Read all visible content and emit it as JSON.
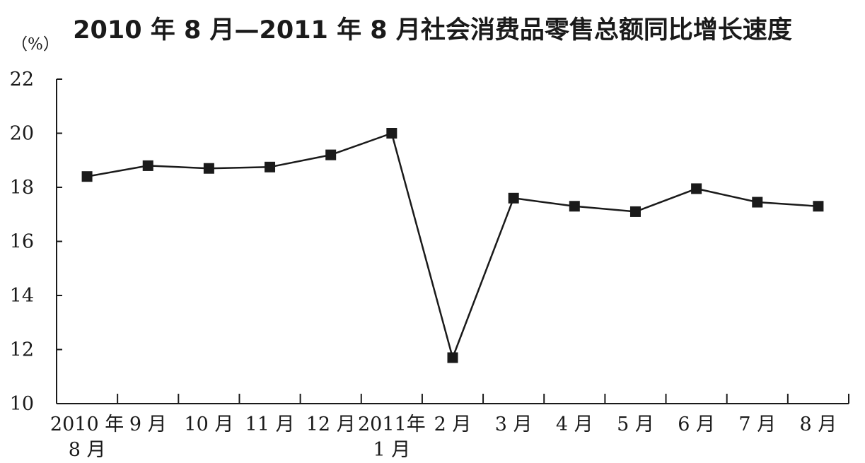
{
  "chart_data": {
    "type": "line",
    "title": "2010 年 8 月—2011 年 8 月社会消费品零售总额同比增长速度",
    "ylabel": "（%）",
    "xlabel": "",
    "ylim": [
      10,
      22
    ],
    "yticks": [
      10,
      12,
      14,
      16,
      18,
      20,
      22
    ],
    "grid": false,
    "categories": [
      [
        "2010 年",
        "8 月"
      ],
      [
        "9 月"
      ],
      [
        "10 月"
      ],
      [
        "11 月"
      ],
      [
        "12 月"
      ],
      [
        "2011年",
        "1 月"
      ],
      [
        "2 月"
      ],
      [
        "3 月"
      ],
      [
        "4 月"
      ],
      [
        "5 月"
      ],
      [
        "6 月"
      ],
      [
        "7 月"
      ],
      [
        "8 月"
      ]
    ],
    "series": [
      {
        "values": [
          18.4,
          18.8,
          18.7,
          18.75,
          19.2,
          20.0,
          11.7,
          17.6,
          17.3,
          17.1,
          17.95,
          17.45,
          17.3
        ]
      }
    ],
    "colors": {
      "line": "#1a1a1a",
      "marker": "#1a1a1a",
      "axis": "#1a1a1a"
    }
  }
}
